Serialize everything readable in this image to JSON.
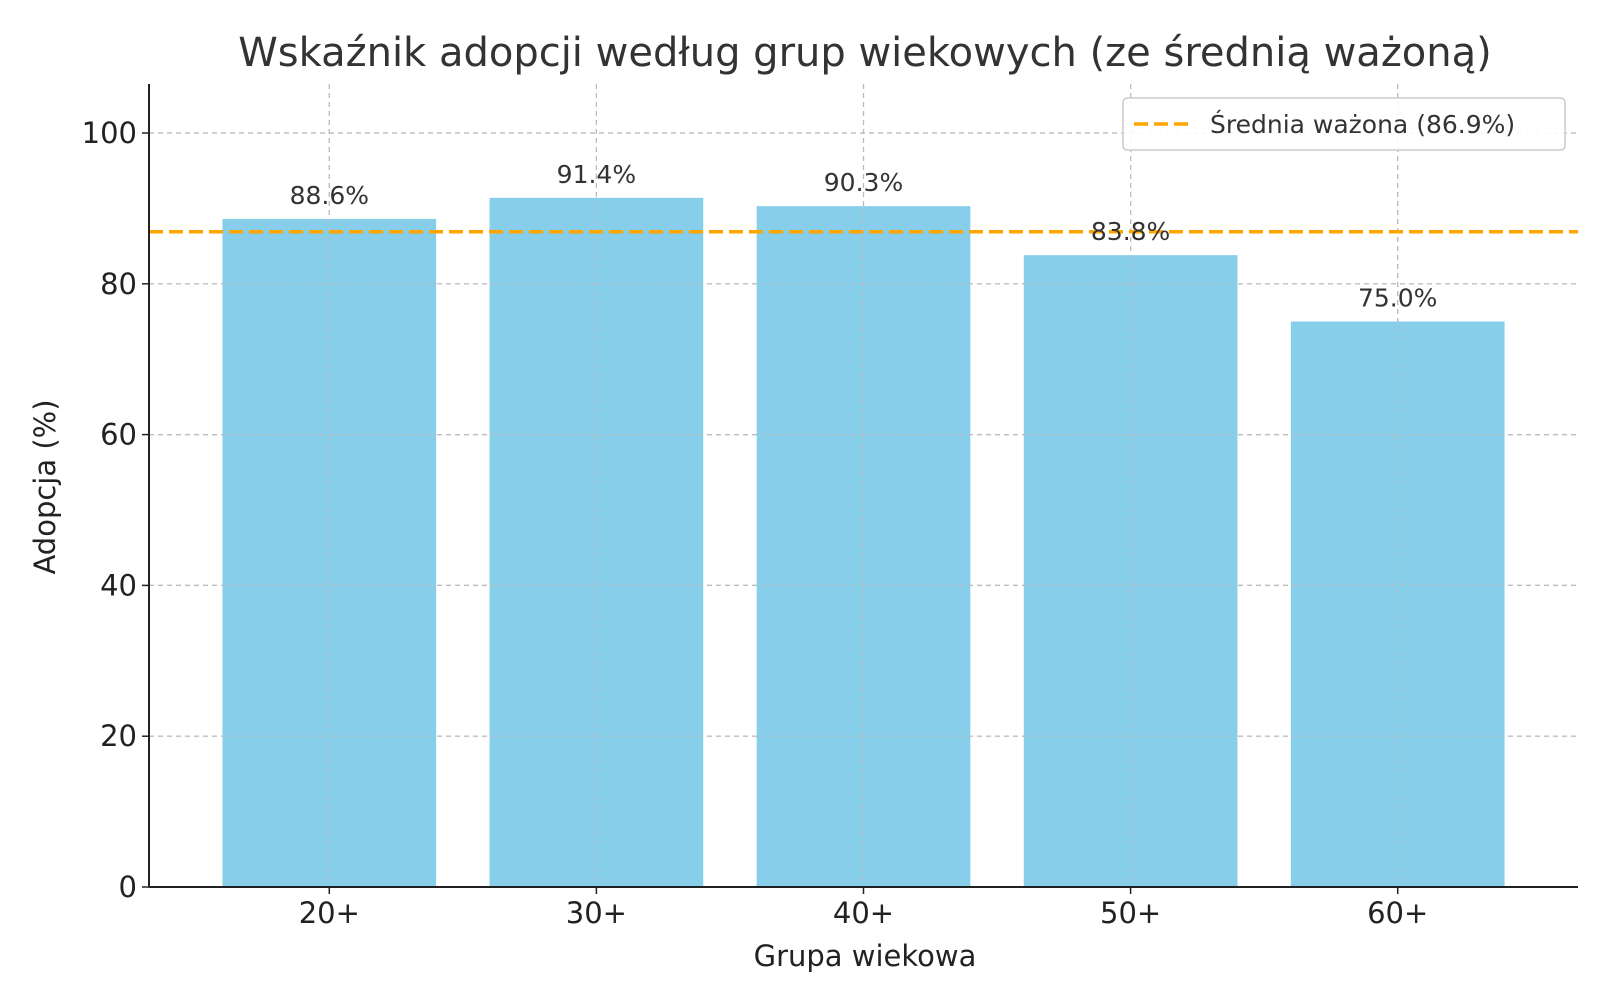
{
  "chart_data": {
    "type": "bar",
    "title": "Wskaźnik adopcji według grup wiekowych (ze średnią ważoną)",
    "xlabel": "Grupa wiekowa",
    "ylabel": "Adopcja (%)",
    "categories": [
      "20+",
      "30+",
      "40+",
      "50+",
      "60+"
    ],
    "values": [
      88.6,
      91.4,
      90.3,
      83.8,
      75.0
    ],
    "value_labels": [
      "88.6%",
      "91.4%",
      "90.3%",
      "83.8%",
      "75.0%"
    ],
    "ylim": [
      0,
      106.5
    ],
    "yticks": [
      0,
      20,
      40,
      60,
      80,
      100
    ],
    "ytick_labels": [
      "0",
      "20",
      "40",
      "60",
      "80",
      "100"
    ],
    "reference_line": {
      "value": 86.9,
      "label": "Średnia ważona (86.9%)",
      "style": "dashed",
      "color": "#FFA500"
    },
    "bar_color": "#87CEEB",
    "grid": true,
    "legend_position": "top-right"
  }
}
